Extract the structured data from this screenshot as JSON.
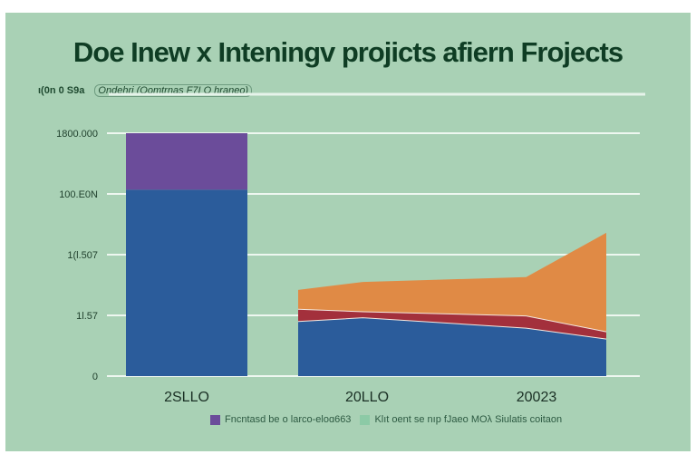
{
  "chart_data": {
    "type": "bar+area",
    "title": "Doe Inew x Inteningv projicts afiern Frojects",
    "subtitle_unit": "ι(0n 0 S9a",
    "subtitle_note": "Ondehri (Oomtrnas F7I O hraneo)",
    "y_tick_labels": [
      "0",
      "1l.57",
      "1(l.507",
      "100.E0N",
      "1800.000"
    ],
    "ylim": [
      0,
      4
    ],
    "x_tick_labels": [
      "2SLLO",
      "20LLO",
      "20023"
    ],
    "bar": {
      "category": "2SLLO",
      "series": [
        {
          "name": "blue",
          "value": 3.07,
          "color": "#2b5c9b"
        },
        {
          "name": "purple",
          "value": 0.93,
          "color": "#6b4c9a"
        }
      ]
    },
    "area": {
      "x": [
        0,
        0.21,
        0.74,
        1.0
      ],
      "series": [
        {
          "name": "blue",
          "top": [
            0.9,
            0.96,
            0.79,
            0.61
          ],
          "color": "#2b5c9b"
        },
        {
          "name": "red",
          "top": [
            1.1,
            1.06,
            0.99,
            0.73
          ],
          "color": "#a3303c"
        },
        {
          "name": "orange",
          "top": [
            1.42,
            1.55,
            1.63,
            2.36
          ],
          "color": "#e08a45"
        }
      ]
    },
    "legend": [
      {
        "label": "Fncntasd be o larco-eloɑ663",
        "color": "#6b4c9a"
      },
      {
        "label": "Klıt oent se nıp fJaeo MOλ Siulatis coitaon",
        "color": "#8ccaa6"
      }
    ],
    "legend_placement": "bottom",
    "grid": true
  }
}
